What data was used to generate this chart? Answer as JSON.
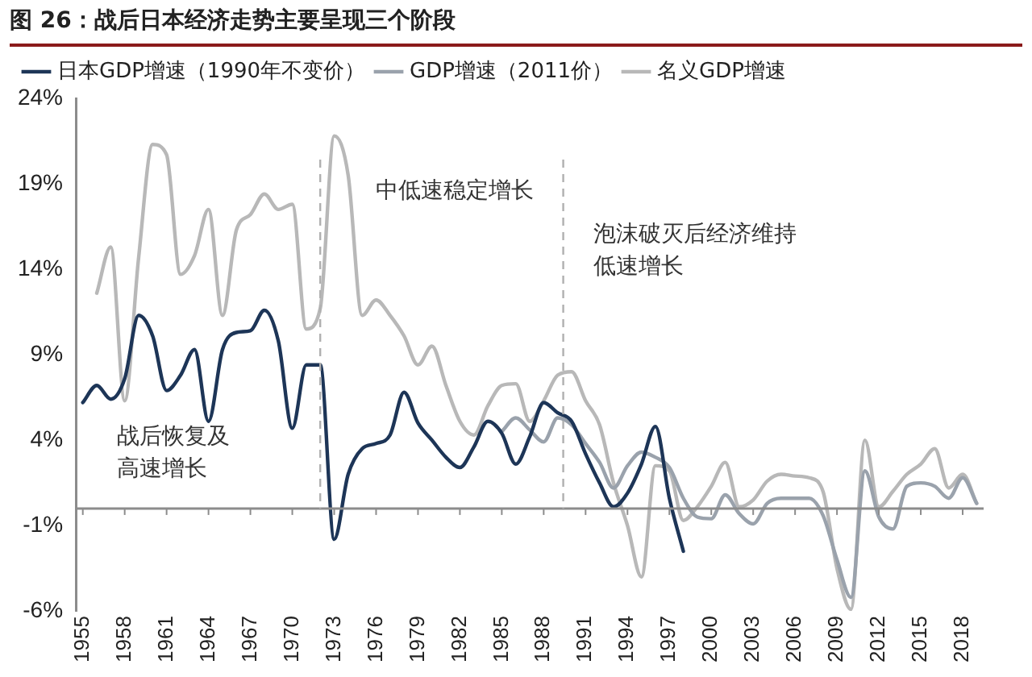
{
  "chart_data": {
    "type": "line",
    "title": "图 26：战后日本经济走势主要呈现三个阶段",
    "xlim": [
      1954.5,
      2019.5
    ],
    "xticks": [
      1955,
      1958,
      1961,
      1964,
      1967,
      1970,
      1973,
      1976,
      1979,
      1982,
      1985,
      1988,
      1991,
      1994,
      1997,
      2000,
      2003,
      2006,
      2009,
      2012,
      2015,
      2018
    ],
    "ylim": [
      -6,
      24
    ],
    "yticks": [
      {
        "value": -6,
        "label": "-6%"
      },
      {
        "value": -1,
        "label": "-1%"
      },
      {
        "value": 4,
        "label": "4%"
      },
      {
        "value": 9,
        "label": "9%"
      },
      {
        "value": 14,
        "label": "14%"
      },
      {
        "value": 19,
        "label": "19%"
      },
      {
        "value": 24,
        "label": "24%"
      }
    ],
    "grid": false,
    "legend": "top",
    "marker": "none",
    "line_style": "solid",
    "series": [
      {
        "name": "日本GDP增速（1990年不变价）",
        "color": "#1d3557",
        "x": [
          1955,
          1956,
          1957,
          1958,
          1959,
          1960,
          1961,
          1962,
          1963,
          1964,
          1965,
          1966,
          1967,
          1968,
          1969,
          1970,
          1971,
          1972,
          1973,
          1974,
          1975,
          1976,
          1977,
          1978,
          1979,
          1980,
          1981,
          1982,
          1983,
          1984,
          1985,
          1986,
          1987,
          1988,
          1989,
          1990,
          1991,
          1992,
          1993,
          1994,
          1995,
          1996,
          1997,
          1998
        ],
        "values": [
          6.2,
          7.2,
          6.4,
          7.6,
          11.3,
          10.1,
          6.9,
          7.8,
          9.3,
          5.1,
          9.3,
          10.3,
          10.4,
          11.6,
          9.8,
          4.7,
          8.4,
          8.4,
          -1.8,
          2.0,
          3.5,
          3.8,
          4.3,
          6.8,
          5.0,
          4.0,
          3.0,
          2.4,
          3.6,
          5.1,
          4.4,
          2.6,
          4.2,
          6.2,
          5.6,
          5.1,
          3.2,
          1.5,
          0.1,
          0.9,
          2.6,
          4.8,
          0.6,
          -2.5
        ]
      },
      {
        "name": "GDP增速（2011价）",
        "color": "#9aa2ac",
        "x": [
          1985,
          1986,
          1987,
          1988,
          1989,
          1990,
          1991,
          1992,
          1993,
          1994,
          1995,
          1996,
          1997,
          1998,
          1999,
          2000,
          2001,
          2002,
          2003,
          2004,
          2005,
          2006,
          2007,
          2008,
          2009,
          2010,
          2011,
          2012,
          2013,
          2014,
          2015,
          2016,
          2017,
          2018,
          2019
        ],
        "values": [
          4.5,
          5.3,
          4.6,
          3.9,
          5.3,
          4.9,
          3.8,
          2.7,
          1.2,
          2.5,
          3.3,
          3.0,
          2.4,
          0.6,
          -0.5,
          -0.6,
          0.8,
          -0.3,
          -0.9,
          0.3,
          0.6,
          0.6,
          0.6,
          -0.4,
          -3.0,
          -5.2,
          2.2,
          -0.5,
          -1.2,
          1.3,
          1.5,
          1.3,
          0.6,
          1.8,
          0.3
        ]
      },
      {
        "name": "名义GDP增速",
        "color": "#b8b8b8",
        "x": [
          1956,
          1957,
          1958,
          1959,
          1960,
          1961,
          1962,
          1963,
          1964,
          1965,
          1966,
          1967,
          1968,
          1969,
          1970,
          1971,
          1972,
          1973,
          1974,
          1975,
          1976,
          1977,
          1978,
          1979,
          1980,
          1981,
          1982,
          1983,
          1984,
          1985,
          1986,
          1987,
          1988,
          1989,
          1990,
          1991,
          1992,
          1993,
          1994,
          1995,
          1996,
          1997,
          1998,
          1999,
          2000,
          2001,
          2002,
          2003,
          2004,
          2005,
          2006,
          2007,
          2008,
          2009,
          2010,
          2011,
          2012,
          2013,
          2014,
          2015,
          2016,
          2017,
          2018,
          2019
        ],
        "values": [
          12.6,
          15.3,
          6.3,
          14.7,
          21.3,
          20.7,
          13.7,
          14.8,
          17.5,
          11.3,
          16.3,
          17.2,
          18.4,
          17.5,
          17.8,
          10.5,
          11.7,
          21.8,
          19.5,
          11.3,
          12.2,
          11.3,
          10.1,
          8.4,
          9.5,
          7.2,
          5.1,
          4.3,
          6.0,
          7.2,
          7.3,
          5.1,
          6.3,
          7.8,
          8.0,
          6.3,
          4.9,
          1.5,
          -1.0,
          -4.0,
          2.5,
          2.2,
          -0.7,
          0.1,
          1.3,
          2.7,
          0.1,
          0.5,
          1.6,
          2.0,
          1.9,
          1.8,
          1.0,
          -3.5,
          -5.9,
          4.0,
          0.1,
          1.0,
          2.0,
          2.6,
          3.5,
          1.2,
          2.0,
          0.3
        ]
      }
    ],
    "ref_lines": [
      {
        "axis": "x",
        "value": 1972,
        "color": "#b0b0b0",
        "line_style": "dashed"
      },
      {
        "axis": "x",
        "value": 1989.4,
        "color": "#b0b0b0",
        "line_style": "dashed"
      }
    ],
    "annotations": [
      "战后恢复及高速增长",
      "中低速稳定增长",
      "泡沫破灭后经济维持低速增长"
    ]
  }
}
